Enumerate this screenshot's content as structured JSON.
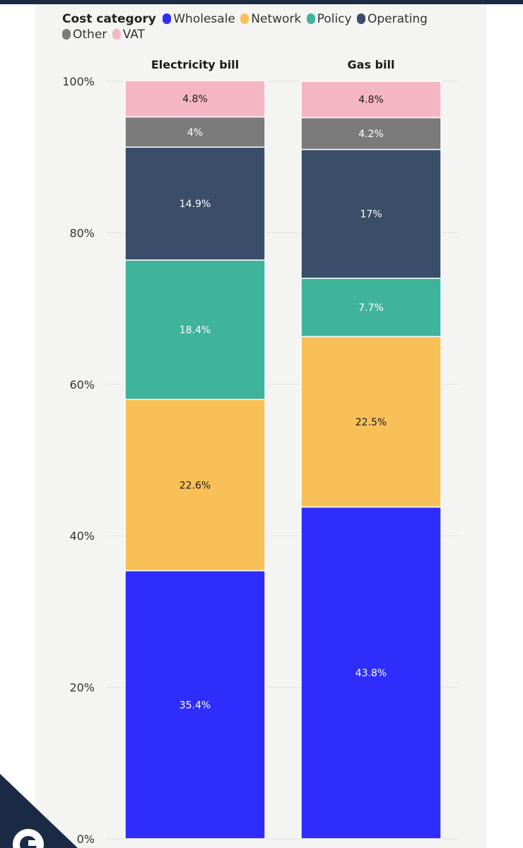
{
  "legend": {
    "title": "Cost category",
    "items": [
      {
        "label": "Wholesale",
        "color": "#2e2dfc"
      },
      {
        "label": "Network",
        "color": "#f9c057"
      },
      {
        "label": "Policy",
        "color": "#40b39b"
      },
      {
        "label": "Operating",
        "color": "#3a4e69"
      },
      {
        "label": "Other",
        "color": "#7b7b7b"
      },
      {
        "label": "VAT",
        "color": "#f5b6c3"
      }
    ]
  },
  "chart_data": {
    "type": "bar",
    "stacked": true,
    "categories": [
      "Electricity bill",
      "Gas bill"
    ],
    "series": [
      {
        "name": "Wholesale",
        "values": [
          35.4,
          43.8
        ],
        "color": "#2e2dfc",
        "label_color": "#ffffff"
      },
      {
        "name": "Network",
        "values": [
          22.6,
          22.5
        ],
        "color": "#f9c057",
        "label_color": "#1a1a1a"
      },
      {
        "name": "Policy",
        "values": [
          18.4,
          7.7
        ],
        "color": "#40b39b",
        "label_color": "#ffffff"
      },
      {
        "name": "Operating",
        "values": [
          14.9,
          17
        ],
        "color": "#3a4e69",
        "label_color": "#ffffff"
      },
      {
        "name": "Other",
        "values": [
          4,
          4.2
        ],
        "color": "#7b7b7b",
        "label_color": "#ffffff"
      },
      {
        "name": "VAT",
        "values": [
          4.8,
          4.8
        ],
        "color": "#f5b6c3",
        "label_color": "#1a1a1a"
      }
    ],
    "data_labels": [
      [
        "35.4%",
        "43.8%"
      ],
      [
        "22.6%",
        "22.5%"
      ],
      [
        "18.4%",
        "7.7%"
      ],
      [
        "14.9%",
        "17%"
      ],
      [
        "4%",
        "4.2%"
      ],
      [
        "4.8%",
        "4.8%"
      ]
    ],
    "yticks": [
      {
        "value": 0,
        "label": "0%"
      },
      {
        "value": 20,
        "label": "20%"
      },
      {
        "value": 40,
        "label": "40%"
      },
      {
        "value": 60,
        "label": "60%"
      },
      {
        "value": 80,
        "label": "80%"
      },
      {
        "value": 100,
        "label": "100%"
      }
    ],
    "ylim": [
      0,
      100
    ],
    "grid": true,
    "legend_position": "top"
  }
}
